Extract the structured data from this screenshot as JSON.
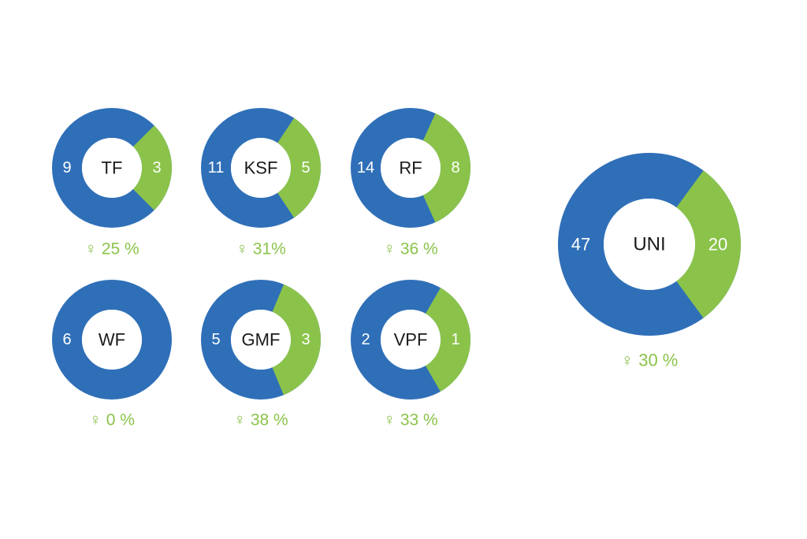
{
  "colors": {
    "male": "#2f6fb8",
    "female": "#8bc34a",
    "center": "#ffffff",
    "center_text": "#1a1a1a",
    "value_text": "#ffffff"
  },
  "female_symbol": "♀",
  "chart_data": [
    {
      "type": "pie",
      "name": "TF",
      "categories": [
        "male",
        "female"
      ],
      "values": [
        9,
        3
      ],
      "female_pct_label": "25 %"
    },
    {
      "type": "pie",
      "name": "KSF",
      "categories": [
        "male",
        "female"
      ],
      "values": [
        11,
        5
      ],
      "female_pct_label": "31%"
    },
    {
      "type": "pie",
      "name": "RF",
      "categories": [
        "male",
        "female"
      ],
      "values": [
        14,
        8
      ],
      "female_pct_label": "36 %"
    },
    {
      "type": "pie",
      "name": "WF",
      "categories": [
        "male",
        "female"
      ],
      "values": [
        6,
        0
      ],
      "female_pct_label": "0 %"
    },
    {
      "type": "pie",
      "name": "GMF",
      "categories": [
        "male",
        "female"
      ],
      "values": [
        5,
        3
      ],
      "female_pct_label": "38 %"
    },
    {
      "type": "pie",
      "name": "VPF",
      "categories": [
        "male",
        "female"
      ],
      "values": [
        2,
        1
      ],
      "female_pct_label": "33 %"
    },
    {
      "type": "pie",
      "name": "UNI",
      "categories": [
        "male",
        "female"
      ],
      "values": [
        47,
        20
      ],
      "female_pct_label": "30 %"
    }
  ]
}
